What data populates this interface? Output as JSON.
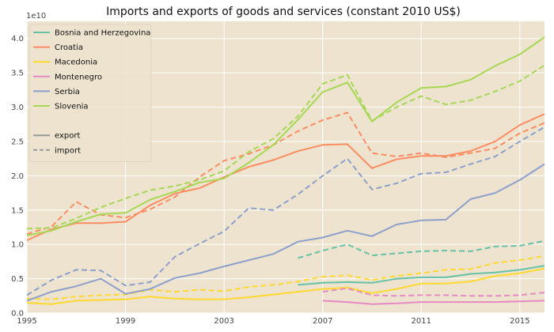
{
  "chart_data": {
    "type": "line",
    "title": "Imports and exports of goods and services (constant 2010 US$)",
    "xlabel": "",
    "ylabel": "",
    "y_scale_label": "1e10",
    "xlim": [
      1995,
      2016
    ],
    "ylim": [
      0,
      4.25
    ],
    "x_ticks": [
      1995,
      1999,
      2003,
      2007,
      2011,
      2015
    ],
    "y_ticks": [
      0.0,
      0.5,
      1.0,
      1.5,
      2.0,
      2.5,
      3.0,
      3.5,
      4.0
    ],
    "y_tick_labels": [
      "0.0",
      "0.5",
      "1.0",
      "1.5",
      "2.0",
      "2.5",
      "3.0",
      "3.5",
      "4.0"
    ],
    "grid": true,
    "legend_position": "top-left",
    "colors": {
      "plot_bg": "#ede3cf",
      "grid": "#ffffff",
      "style_key": "#999999"
    },
    "style_legend": [
      {
        "label": "export",
        "dash": "solid"
      },
      {
        "label": "import",
        "dash": "dashed"
      }
    ],
    "series": [
      {
        "name": "Bosnia and Herzegovina",
        "color": "#66c2a5",
        "export": {
          "x": [
            2006,
            2007,
            2008,
            2009,
            2010,
            2011,
            2012,
            2013,
            2014,
            2015,
            2016
          ],
          "y": [
            0.41,
            0.44,
            0.45,
            0.44,
            0.5,
            0.52,
            0.52,
            0.57,
            0.59,
            0.63,
            0.69
          ]
        },
        "import": {
          "x": [
            2006,
            2007,
            2008,
            2009,
            2010,
            2011,
            2012,
            2013,
            2014,
            2015,
            2016
          ],
          "y": [
            0.8,
            0.91,
            1.0,
            0.84,
            0.87,
            0.9,
            0.91,
            0.9,
            0.97,
            0.98,
            1.05
          ]
        }
      },
      {
        "name": "Croatia",
        "color": "#fc8d62",
        "export": {
          "x": [
            1995,
            1996,
            1997,
            1998,
            1999,
            2000,
            2001,
            2002,
            2003,
            2004,
            2005,
            2006,
            2007,
            2008,
            2009,
            2010,
            2011,
            2012,
            2013,
            2014,
            2015,
            2016
          ],
          "y": [
            1.06,
            1.22,
            1.31,
            1.31,
            1.33,
            1.57,
            1.74,
            1.82,
            1.98,
            2.13,
            2.23,
            2.36,
            2.45,
            2.46,
            2.11,
            2.24,
            2.29,
            2.29,
            2.36,
            2.5,
            2.74,
            2.9
          ]
        },
        "import": {
          "x": [
            1995,
            1996,
            1997,
            1998,
            1999,
            2000,
            2001,
            2002,
            2003,
            2004,
            2005,
            2006,
            2007,
            2008,
            2009,
            2010,
            2011,
            2012,
            2013,
            2014,
            2015,
            2016
          ],
          "y": [
            1.15,
            1.26,
            1.62,
            1.43,
            1.39,
            1.51,
            1.69,
            1.98,
            2.22,
            2.32,
            2.45,
            2.65,
            2.81,
            2.92,
            2.33,
            2.28,
            2.33,
            2.27,
            2.33,
            2.4,
            2.62,
            2.77
          ]
        }
      },
      {
        "name": "Macedonia",
        "color": "#ffd92f",
        "export": {
          "x": [
            1995,
            1996,
            1997,
            1998,
            1999,
            2000,
            2001,
            2002,
            2003,
            2004,
            2005,
            2006,
            2007,
            2008,
            2009,
            2010,
            2011,
            2012,
            2013,
            2014,
            2015,
            2016
          ],
          "y": [
            0.15,
            0.13,
            0.18,
            0.19,
            0.2,
            0.24,
            0.21,
            0.2,
            0.2,
            0.23,
            0.27,
            0.31,
            0.35,
            0.37,
            0.29,
            0.35,
            0.43,
            0.43,
            0.46,
            0.54,
            0.58,
            0.65
          ]
        },
        "import": {
          "x": [
            1995,
            1996,
            1997,
            1998,
            1999,
            2000,
            2001,
            2002,
            2003,
            2004,
            2005,
            2006,
            2007,
            2008,
            2009,
            2010,
            2011,
            2012,
            2013,
            2014,
            2015,
            2016
          ],
          "y": [
            0.21,
            0.2,
            0.24,
            0.26,
            0.27,
            0.34,
            0.31,
            0.34,
            0.32,
            0.38,
            0.41,
            0.46,
            0.53,
            0.55,
            0.48,
            0.54,
            0.58,
            0.63,
            0.64,
            0.73,
            0.77,
            0.83
          ]
        }
      },
      {
        "name": "Montenegro",
        "color": "#e78ac3",
        "export": {
          "x": [
            2007,
            2008,
            2009,
            2010,
            2011,
            2012,
            2013,
            2014,
            2015,
            2016
          ],
          "y": [
            0.18,
            0.16,
            0.13,
            0.14,
            0.16,
            0.16,
            0.16,
            0.16,
            0.17,
            0.18
          ]
        },
        "import": {
          "x": [
            2007,
            2008,
            2009,
            2010,
            2011,
            2012,
            2013,
            2014,
            2015,
            2016
          ],
          "y": [
            0.31,
            0.36,
            0.26,
            0.25,
            0.26,
            0.26,
            0.25,
            0.25,
            0.26,
            0.3
          ]
        }
      },
      {
        "name": "Serbia",
        "color": "#8da0cb",
        "export": {
          "x": [
            1995,
            1996,
            1997,
            1998,
            1999,
            2000,
            2001,
            2002,
            2003,
            2004,
            2005,
            2006,
            2007,
            2008,
            2009,
            2010,
            2011,
            2012,
            2013,
            2014,
            2015,
            2016
          ],
          "y": [
            0.18,
            0.31,
            0.39,
            0.5,
            0.28,
            0.35,
            0.51,
            0.58,
            0.68,
            0.77,
            0.86,
            1.04,
            1.1,
            1.2,
            1.12,
            1.29,
            1.35,
            1.36,
            1.66,
            1.75,
            1.94,
            2.17
          ]
        },
        "import": {
          "x": [
            1995,
            1996,
            1997,
            1998,
            1999,
            2000,
            2001,
            2002,
            2003,
            2004,
            2005,
            2006,
            2007,
            2008,
            2009,
            2010,
            2011,
            2012,
            2013,
            2014,
            2015,
            2016
          ],
          "y": [
            0.26,
            0.48,
            0.63,
            0.62,
            0.4,
            0.45,
            0.82,
            1.01,
            1.19,
            1.53,
            1.5,
            1.73,
            2.0,
            2.25,
            1.8,
            1.89,
            2.03,
            2.05,
            2.17,
            2.28,
            2.5,
            2.71
          ]
        }
      },
      {
        "name": "Slovenia",
        "color": "#a6d854",
        "export": {
          "x": [
            1995,
            1996,
            1997,
            1998,
            1999,
            2000,
            2001,
            2002,
            2003,
            2004,
            2005,
            2006,
            2007,
            2008,
            2009,
            2010,
            2011,
            2012,
            2013,
            2014,
            2015,
            2016
          ],
          "y": [
            1.13,
            1.2,
            1.33,
            1.44,
            1.46,
            1.65,
            1.77,
            1.9,
            1.96,
            2.19,
            2.45,
            2.82,
            3.22,
            3.36,
            2.79,
            3.07,
            3.28,
            3.3,
            3.4,
            3.6,
            3.77,
            4.02
          ]
        },
        "import": {
          "x": [
            1995,
            1996,
            1997,
            1998,
            1999,
            2000,
            2001,
            2002,
            2003,
            2004,
            2005,
            2006,
            2007,
            2008,
            2009,
            2010,
            2011,
            2012,
            2013,
            2014,
            2015,
            2016
          ],
          "y": [
            1.23,
            1.24,
            1.38,
            1.54,
            1.67,
            1.79,
            1.85,
            1.94,
            2.07,
            2.35,
            2.54,
            2.87,
            3.34,
            3.47,
            2.8,
            3.0,
            3.16,
            3.04,
            3.1,
            3.23,
            3.38,
            3.61
          ]
        }
      }
    ]
  }
}
